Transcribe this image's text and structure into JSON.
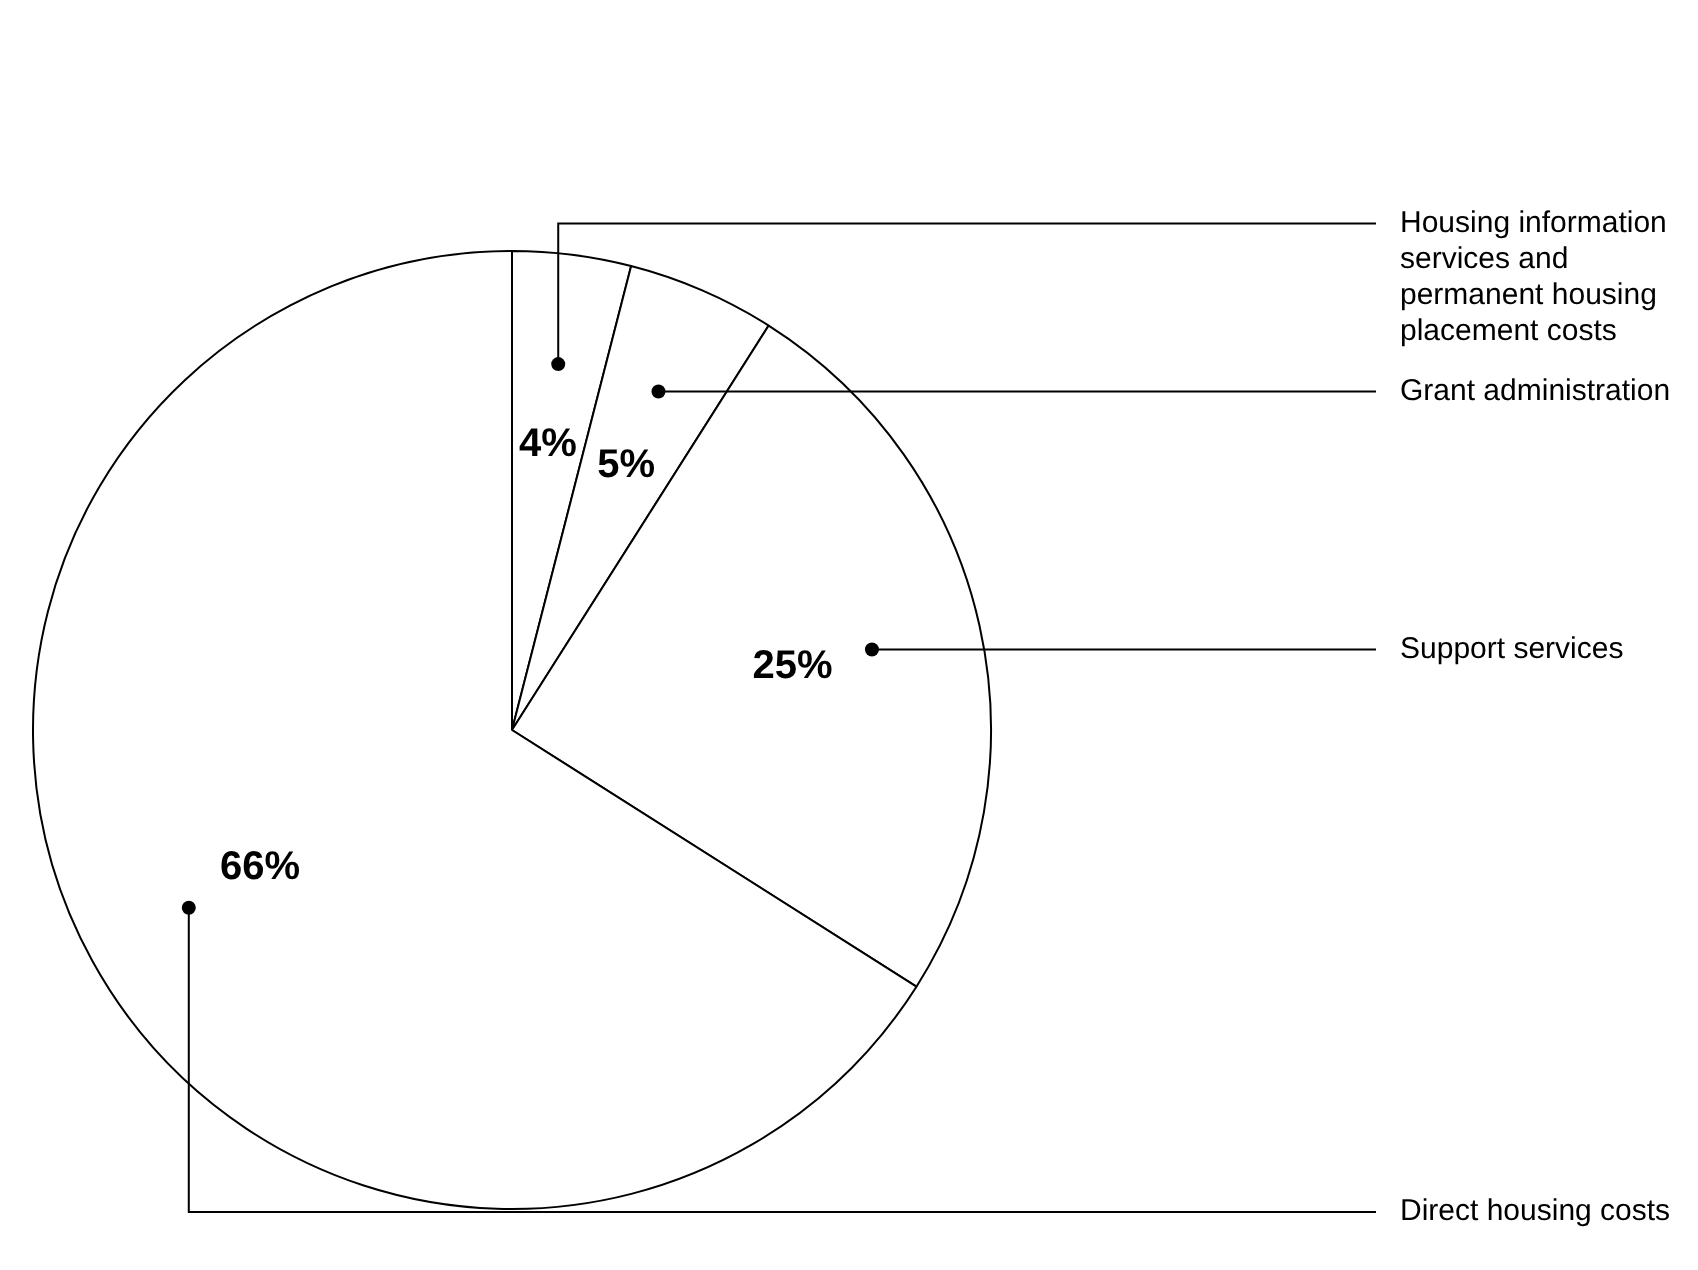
{
  "chart_data": {
    "type": "pie",
    "categories": [
      "Housing information services and permanent housing placement costs",
      "Grant administration",
      "Support services",
      "Direct housing costs"
    ],
    "values": [
      4,
      5,
      25,
      66
    ],
    "colors": [
      "#ffffff",
      "#ffffff",
      "#ffffff",
      "#ffffff"
    ],
    "value_labels": [
      "4%",
      "5%",
      "25%",
      "66%"
    ],
    "legend": false
  }
}
